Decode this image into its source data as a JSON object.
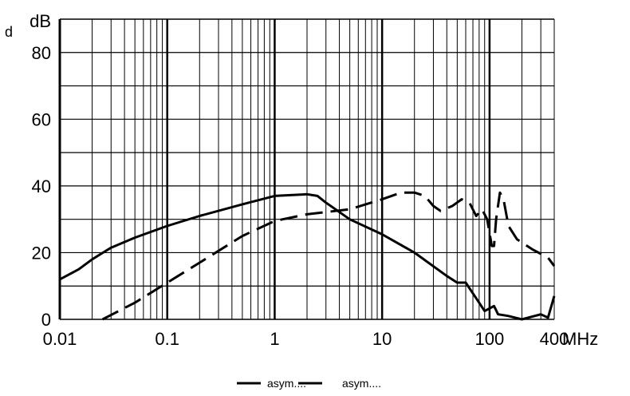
{
  "chart_data": {
    "type": "line",
    "title": "",
    "corner_label": "d",
    "ylabel": "dB",
    "xunit": "MHz",
    "xscale": "log",
    "xlim": [
      0.01,
      400
    ],
    "ylim": [
      0,
      90
    ],
    "grid": true,
    "legend_placement": "bottom",
    "xticks": [
      {
        "v": 0.01,
        "label": "0.01"
      },
      {
        "v": 0.1,
        "label": "0.1"
      },
      {
        "v": 1,
        "label": "1"
      },
      {
        "v": 10,
        "label": "10"
      },
      {
        "v": 100,
        "label": "100"
      },
      {
        "v": 400,
        "label": "400"
      }
    ],
    "yticks": [
      {
        "v": 0,
        "label": "0"
      },
      {
        "v": 20,
        "label": "20"
      },
      {
        "v": 40,
        "label": "40"
      },
      {
        "v": 60,
        "label": "60"
      },
      {
        "v": 80,
        "label": "80"
      }
    ],
    "series": [
      {
        "name": "asym....",
        "style": "solid",
        "color": "#000000",
        "x": [
          0.01,
          0.015,
          0.02,
          0.03,
          0.05,
          0.1,
          0.2,
          0.5,
          1,
          2,
          2.5,
          3,
          5,
          10,
          20,
          40,
          50,
          60,
          80,
          90,
          110,
          120,
          150,
          200,
          300,
          350,
          400
        ],
        "y": [
          12,
          15,
          18,
          21.5,
          24.5,
          28,
          31,
          34.5,
          37,
          37.5,
          37,
          35,
          30,
          25.5,
          20,
          13,
          11,
          11,
          5,
          2.5,
          4,
          1.5,
          1,
          0,
          1.5,
          0.5,
          7
        ]
      },
      {
        "name": "asym....",
        "style": "dashed",
        "color": "#000000",
        "x": [
          0.025,
          0.05,
          0.1,
          0.2,
          0.5,
          1,
          2,
          5,
          10,
          15,
          20,
          25,
          30,
          35,
          45,
          55,
          65,
          75,
          85,
          95,
          105,
          110,
          115,
          125,
          135,
          150,
          180,
          250,
          350,
          400
        ],
        "y": [
          0,
          5,
          11,
          17,
          25,
          29.5,
          31.5,
          33,
          36,
          38,
          38,
          37,
          34,
          32.5,
          34,
          36,
          35,
          31,
          33,
          30,
          22,
          22,
          30,
          38,
          36,
          28,
          24,
          21,
          18.5,
          16
        ]
      }
    ]
  }
}
